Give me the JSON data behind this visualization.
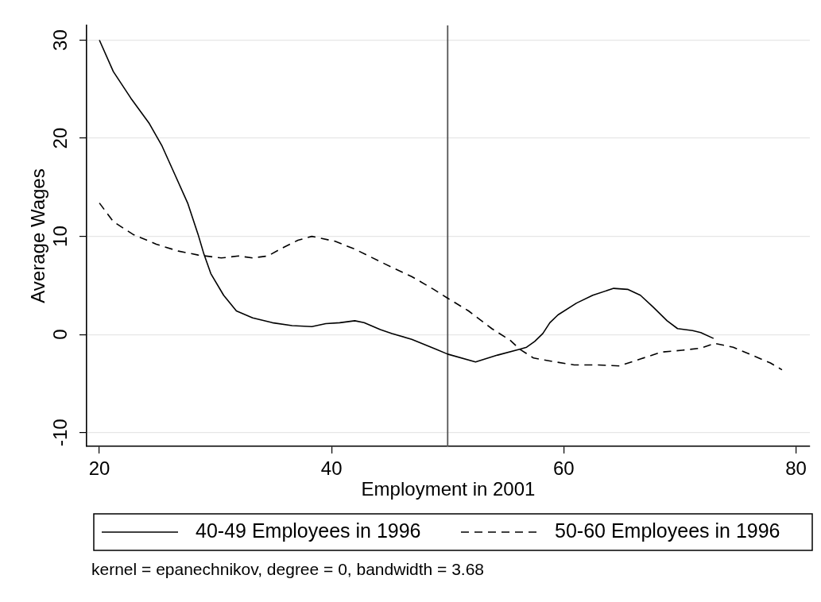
{
  "chart_data": {
    "type": "line",
    "xlabel": "Employment in 2001",
    "ylabel": "Average Wages",
    "annotations": [
      "kernel = epanechnikov, degree = 0, bandwidth = 3.68"
    ],
    "xlim": [
      18.9,
      81.2
    ],
    "xticks": [
      20,
      40,
      60,
      80
    ],
    "ylim": [
      -11.4,
      31.5
    ],
    "yticks": [
      -10,
      0,
      10,
      20,
      30
    ],
    "grid": "y",
    "legend": "bottom",
    "marker": "none",
    "ref_lines": [
      {
        "axis": "x",
        "value": 50,
        "color": "#555555"
      }
    ],
    "series": [
      {
        "name": "40-49 Employees in 1996",
        "color": "#000000",
        "line_style": "solid",
        "x": [
          20,
          21.2,
          22.7,
          24.3,
          25.4,
          26.5,
          27.6,
          28.5,
          29.0,
          29.6,
          30.7,
          31.8,
          33.2,
          34.9,
          36.6,
          38.3,
          39.5,
          40.7,
          42.0,
          42.8,
          44.2,
          45.2,
          46.9,
          49.0,
          50.0,
          52.4,
          54.3,
          56.2,
          56.8,
          57.5,
          58.2,
          58.8,
          59.5,
          61.1,
          62.5,
          64.3,
          65.5,
          66.6,
          67.7,
          68.9,
          69.8,
          71.1,
          71.8,
          72.9
        ],
        "values": [
          30,
          26.8,
          24.1,
          21.5,
          19.2,
          16.3,
          13.4,
          10.2,
          8.2,
          6.2,
          4.0,
          2.4,
          1.7,
          1.2,
          0.9,
          0.8,
          1.1,
          1.2,
          1.4,
          1.2,
          0.5,
          0.1,
          -0.5,
          -1.5,
          -2.0,
          -2.8,
          -2.1,
          -1.5,
          -1.3,
          -0.7,
          0.1,
          1.2,
          2.0,
          3.2,
          4.0,
          4.7,
          4.6,
          4.0,
          2.8,
          1.4,
          0.6,
          0.4,
          0.2,
          -0.4
        ]
      },
      {
        "name": "50-60 Employees in 1996",
        "color": "#000000",
        "line_style": "dashed",
        "x": [
          20,
          21.2,
          22.9,
          24.9,
          26.8,
          28.5,
          30.5,
          32.0,
          33.2,
          34.5,
          35.9,
          37.1,
          38.3,
          40.3,
          42.0,
          44.4,
          46.9,
          48.8,
          50.0,
          51.8,
          53.8,
          55.4,
          56.2,
          57.4,
          58.8,
          60.9,
          62.9,
          64.8,
          66.6,
          68.4,
          70.2,
          71.8,
          73.0,
          74.6,
          76.4,
          77.8,
          78.8
        ],
        "values": [
          13.4,
          11.5,
          10.2,
          9.2,
          8.5,
          8.1,
          7.8,
          8.0,
          7.8,
          8.0,
          8.9,
          9.6,
          10.0,
          9.5,
          8.7,
          7.3,
          5.9,
          4.6,
          3.7,
          2.4,
          0.6,
          -0.6,
          -1.5,
          -2.4,
          -2.7,
          -3.1,
          -3.1,
          -3.2,
          -2.5,
          -1.8,
          -1.6,
          -1.4,
          -0.9,
          -1.3,
          -2.2,
          -2.9,
          -3.6
        ]
      }
    ]
  }
}
